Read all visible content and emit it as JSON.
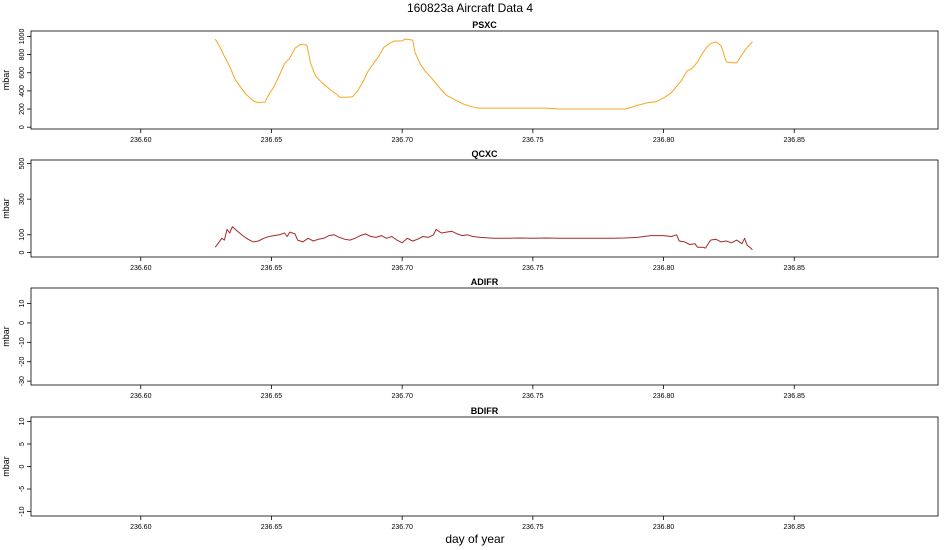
{
  "figure": {
    "title": "160823a    Aircraft Data 4",
    "xlabel": "day of year"
  },
  "chart_data": [
    {
      "type": "line",
      "title": "PSXC",
      "ylabel": "mbar",
      "xlim": [
        236.558,
        236.905
      ],
      "ylim": [
        -20,
        1060
      ],
      "xticks": [
        236.6,
        236.65,
        236.7,
        236.75,
        236.8,
        236.85
      ],
      "xtick_labels": [
        "236.60",
        "236.65",
        "236.70",
        "236.75",
        "236.80",
        "236.85"
      ],
      "yticks": [
        0,
        200,
        400,
        600,
        800,
        1000
      ],
      "ytick_labels": [
        "0",
        "200",
        "400",
        "600",
        "800",
        "1000"
      ],
      "grid": false,
      "series": [
        {
          "color": "#f5a623",
          "x": [
            236.6285,
            236.63,
            236.632,
            236.634,
            236.636,
            236.638,
            236.64,
            236.643,
            236.645,
            236.646,
            236.6475,
            236.649,
            236.651,
            236.653,
            236.655,
            236.657,
            236.659,
            236.661,
            236.662,
            236.6635,
            236.665,
            236.667,
            236.669,
            236.671,
            236.673,
            236.675,
            236.676,
            236.677,
            236.679,
            236.681,
            236.683,
            236.685,
            236.687,
            236.689,
            236.691,
            236.693,
            236.695,
            236.697,
            236.698,
            236.7,
            236.701,
            236.702,
            236.704,
            236.705,
            236.707,
            236.709,
            236.711,
            236.713,
            236.715,
            236.717,
            236.719,
            236.721,
            236.723,
            236.726,
            236.729,
            236.735,
            236.745,
            236.755,
            236.76,
            236.77,
            236.78,
            236.7855,
            236.79,
            236.794,
            236.797,
            236.8,
            236.803,
            236.805,
            236.807,
            236.809,
            236.811,
            236.813,
            236.815,
            236.8165,
            236.818,
            236.82,
            236.822,
            236.824,
            236.826,
            236.828,
            236.83,
            236.832,
            236.834
          ],
          "y": [
            970,
            900,
            780,
            670,
            530,
            450,
            370,
            290,
            270,
            275,
            275,
            360,
            450,
            570,
            700,
            760,
            870,
            910,
            910,
            905,
            700,
            560,
            500,
            450,
            400,
            360,
            330,
            330,
            330,
            335,
            400,
            500,
            620,
            700,
            780,
            880,
            920,
            950,
            950,
            950,
            970,
            970,
            960,
            820,
            690,
            610,
            550,
            480,
            410,
            350,
            320,
            290,
            260,
            230,
            210,
            210,
            210,
            210,
            200,
            200,
            200,
            200,
            240,
            270,
            280,
            320,
            380,
            450,
            520,
            620,
            650,
            720,
            820,
            880,
            920,
            940,
            900,
            720,
            710,
            710,
            800,
            880,
            940
          ]
        }
      ]
    },
    {
      "type": "line",
      "title": "QCXC",
      "ylabel": "mbar",
      "xlim": [
        236.558,
        236.905
      ],
      "ylim": [
        -25,
        520
      ],
      "xticks": [
        236.6,
        236.65,
        236.7,
        236.75,
        236.8,
        236.85
      ],
      "xtick_labels": [
        "236.60",
        "236.65",
        "236.70",
        "236.75",
        "236.80",
        "236.85"
      ],
      "yticks": [
        0,
        100,
        300,
        500
      ],
      "ytick_labels": [
        "0",
        "100",
        "300",
        "500"
      ],
      "grid": false,
      "series": [
        {
          "color": "#a52a2a",
          "x": [
            236.6285,
            236.63,
            236.631,
            236.632,
            236.633,
            236.634,
            236.635,
            236.637,
            236.639,
            236.641,
            236.643,
            236.645,
            236.647,
            236.649,
            236.651,
            236.653,
            236.655,
            236.656,
            236.657,
            236.659,
            236.66,
            236.662,
            236.664,
            236.666,
            236.668,
            236.67,
            236.672,
            236.674,
            236.676,
            236.678,
            236.68,
            236.682,
            236.684,
            236.686,
            236.688,
            236.69,
            236.692,
            236.694,
            236.696,
            236.698,
            236.7,
            236.702,
            236.704,
            236.706,
            236.708,
            236.71,
            236.712,
            236.713,
            236.715,
            236.717,
            236.719,
            236.721,
            236.723,
            236.725,
            236.727,
            236.73,
            236.735,
            236.74,
            236.745,
            236.75,
            236.755,
            236.76,
            236.765,
            236.77,
            236.775,
            236.78,
            236.785,
            236.79,
            236.795,
            236.8,
            236.803,
            236.805,
            236.806,
            236.808,
            236.81,
            236.812,
            236.813,
            236.815,
            236.816,
            236.818,
            236.82,
            236.822,
            236.824,
            236.826,
            236.828,
            236.83,
            236.831,
            236.832,
            236.833,
            236.834
          ],
          "y": [
            30,
            60,
            80,
            70,
            130,
            110,
            145,
            120,
            95,
            75,
            60,
            65,
            80,
            90,
            95,
            100,
            110,
            90,
            115,
            105,
            70,
            60,
            80,
            65,
            75,
            80,
            95,
            100,
            85,
            75,
            70,
            80,
            95,
            105,
            90,
            85,
            95,
            80,
            90,
            70,
            55,
            80,
            65,
            75,
            90,
            85,
            100,
            130,
            110,
            115,
            120,
            105,
            95,
            100,
            90,
            85,
            80,
            80,
            82,
            80,
            82,
            80,
            80,
            80,
            80,
            80,
            82,
            85,
            95,
            95,
            90,
            100,
            65,
            60,
            45,
            50,
            30,
            30,
            25,
            70,
            75,
            60,
            65,
            55,
            70,
            50,
            80,
            40,
            30,
            15
          ]
        }
      ]
    },
    {
      "type": "line",
      "title": "ADIFR",
      "ylabel": "mbar",
      "xlim": [
        236.558,
        236.905
      ],
      "ylim": [
        -32,
        18
      ],
      "xticks": [
        236.6,
        236.65,
        236.7,
        236.75,
        236.8,
        236.85
      ],
      "xtick_labels": [
        "236.60",
        "236.65",
        "236.70",
        "236.75",
        "236.80",
        "236.85"
      ],
      "yticks": [
        -30,
        -20,
        -10,
        0,
        10
      ],
      "ytick_labels": [
        "-30",
        "-20",
        "-10",
        "0",
        "10"
      ],
      "grid": false,
      "series": []
    },
    {
      "type": "line",
      "title": "BDIFR",
      "ylabel": "mbar",
      "xlim": [
        236.558,
        236.905
      ],
      "ylim": [
        -11,
        11
      ],
      "xticks": [
        236.6,
        236.65,
        236.7,
        236.75,
        236.8,
        236.85
      ],
      "xtick_labels": [
        "236.60",
        "236.65",
        "236.70",
        "236.75",
        "236.80",
        "236.85"
      ],
      "yticks": [
        -10,
        -5,
        0,
        5,
        10
      ],
      "ytick_labels": [
        "-10",
        "-5",
        "0",
        "5",
        "10"
      ],
      "grid": false,
      "series": []
    }
  ]
}
